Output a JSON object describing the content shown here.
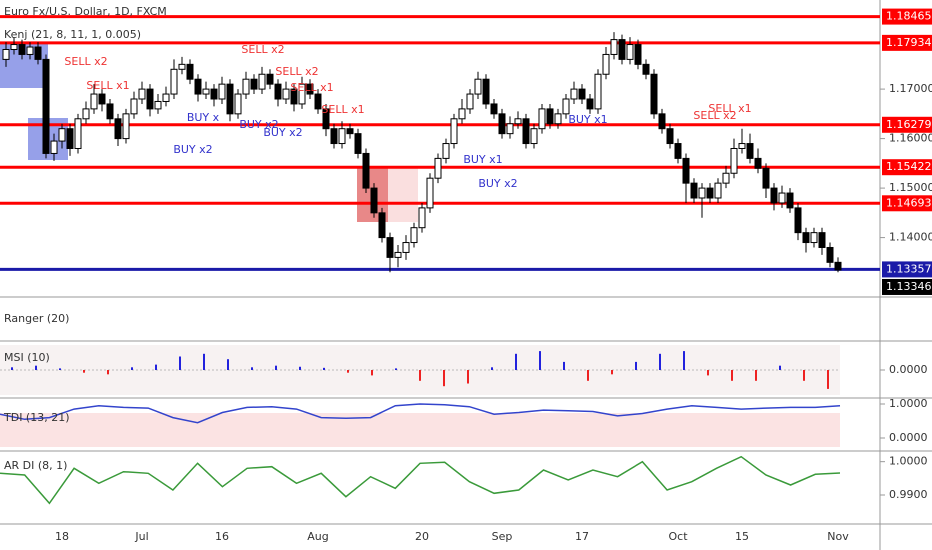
{
  "chart_data": [
    {
      "type": "candlestick",
      "title": "Euro Fx/U.S. Dollar, 1D, FXCM",
      "subtitle": "Kenj (21, 8, 11, 1, 0.005)",
      "up_color": "#ffffff",
      "down_color": "#000000",
      "categories": [
        null,
        null,
        null,
        null,
        null,
        null,
        null,
        "18",
        null,
        null,
        null,
        null,
        null,
        null,
        null,
        null,
        null,
        "Jul",
        null,
        null,
        null,
        null,
        null,
        null,
        null,
        null,
        null,
        "16",
        null,
        null,
        null,
        null,
        null,
        null,
        null,
        null,
        null,
        null,
        null,
        "Aug",
        null,
        null,
        null,
        null,
        null,
        null,
        null,
        null,
        null,
        null,
        null,
        null,
        "20",
        null,
        null,
        null,
        null,
        null,
        null,
        null,
        null,
        null,
        "Sep",
        null,
        null,
        null,
        null,
        null,
        null,
        null,
        null,
        null,
        "17",
        null,
        null,
        null,
        null,
        null,
        null,
        null,
        null,
        null,
        null,
        null,
        "Oct",
        null,
        null,
        null,
        null,
        null,
        null,
        null,
        "15",
        null,
        null,
        null,
        null,
        null,
        null,
        null,
        null,
        null,
        null,
        null,
        "Nov"
      ],
      "candles": [
        [
          1.176,
          1.1795,
          1.1745,
          1.178
        ],
        [
          1.178,
          1.1805,
          1.177,
          1.179
        ],
        [
          1.179,
          1.18,
          1.176,
          1.177
        ],
        [
          1.177,
          1.1795,
          1.176,
          1.1785
        ],
        [
          1.1785,
          1.1795,
          1.175,
          1.176
        ],
        [
          1.176,
          1.177,
          1.156,
          1.157
        ],
        [
          1.157,
          1.161,
          1.1555,
          1.1595
        ],
        [
          1.1595,
          1.163,
          1.158,
          1.162
        ],
        [
          1.162,
          1.163,
          1.1565,
          1.158
        ],
        [
          1.158,
          1.165,
          1.157,
          1.164
        ],
        [
          1.164,
          1.1675,
          1.163,
          1.166
        ],
        [
          1.166,
          1.171,
          1.165,
          1.169
        ],
        [
          1.169,
          1.17,
          1.1655,
          1.167
        ],
        [
          1.167,
          1.168,
          1.163,
          1.164
        ],
        [
          1.164,
          1.165,
          1.1585,
          1.16
        ],
        [
          1.16,
          1.166,
          1.159,
          1.165
        ],
        [
          1.165,
          1.1695,
          1.164,
          1.168
        ],
        [
          1.168,
          1.1715,
          1.167,
          1.17
        ],
        [
          1.17,
          1.171,
          1.1645,
          1.166
        ],
        [
          1.166,
          1.169,
          1.165,
          1.1675
        ],
        [
          1.1675,
          1.1705,
          1.1665,
          1.169
        ],
        [
          1.169,
          1.176,
          1.168,
          1.174
        ],
        [
          1.174,
          1.1765,
          1.173,
          1.175
        ],
        [
          1.175,
          1.176,
          1.171,
          1.172
        ],
        [
          1.172,
          1.173,
          1.1675,
          1.169
        ],
        [
          1.169,
          1.1715,
          1.168,
          1.17
        ],
        [
          1.17,
          1.171,
          1.1665,
          1.168
        ],
        [
          1.168,
          1.1725,
          1.167,
          1.171
        ],
        [
          1.171,
          1.172,
          1.1635,
          1.165
        ],
        [
          1.165,
          1.17,
          1.164,
          1.169
        ],
        [
          1.169,
          1.1735,
          1.168,
          1.172
        ],
        [
          1.172,
          1.173,
          1.169,
          1.17
        ],
        [
          1.17,
          1.1745,
          1.169,
          1.173
        ],
        [
          1.173,
          1.174,
          1.17,
          1.171
        ],
        [
          1.171,
          1.172,
          1.1665,
          1.168
        ],
        [
          1.168,
          1.1715,
          1.167,
          1.17
        ],
        [
          1.17,
          1.171,
          1.1655,
          1.167
        ],
        [
          1.167,
          1.1725,
          1.166,
          1.171
        ],
        [
          1.171,
          1.172,
          1.168,
          1.169
        ],
        [
          1.169,
          1.17,
          1.165,
          1.166
        ],
        [
          1.166,
          1.167,
          1.1605,
          1.162
        ],
        [
          1.162,
          1.163,
          1.158,
          1.159
        ],
        [
          1.159,
          1.1635,
          1.158,
          1.162
        ],
        [
          1.162,
          1.163,
          1.16,
          1.161
        ],
        [
          1.161,
          1.162,
          1.156,
          1.157
        ],
        [
          1.157,
          1.158,
          1.149,
          1.15
        ],
        [
          1.15,
          1.151,
          1.144,
          1.145
        ],
        [
          1.145,
          1.146,
          1.139,
          1.14
        ],
        [
          1.14,
          1.141,
          1.133,
          1.136
        ],
        [
          1.136,
          1.1385,
          1.134,
          1.137
        ],
        [
          1.137,
          1.1405,
          1.1355,
          1.139
        ],
        [
          1.139,
          1.143,
          1.138,
          1.142
        ],
        [
          1.142,
          1.147,
          1.141,
          1.146
        ],
        [
          1.146,
          1.153,
          1.145,
          1.152
        ],
        [
          1.152,
          1.157,
          1.151,
          1.156
        ],
        [
          1.156,
          1.16,
          1.155,
          1.159
        ],
        [
          1.159,
          1.165,
          1.158,
          1.164
        ],
        [
          1.164,
          1.168,
          1.163,
          1.166
        ],
        [
          1.166,
          1.17,
          1.165,
          1.169
        ],
        [
          1.169,
          1.1735,
          1.168,
          1.172
        ],
        [
          1.172,
          1.173,
          1.166,
          1.167
        ],
        [
          1.167,
          1.168,
          1.164,
          1.165
        ],
        [
          1.165,
          1.166,
          1.16,
          1.161
        ],
        [
          1.161,
          1.1645,
          1.16,
          1.163
        ],
        [
          1.163,
          1.1655,
          1.162,
          1.164
        ],
        [
          1.164,
          1.165,
          1.158,
          1.159
        ],
        [
          1.159,
          1.163,
          1.158,
          1.162
        ],
        [
          1.162,
          1.167,
          1.161,
          1.166
        ],
        [
          1.166,
          1.167,
          1.162,
          1.163
        ],
        [
          1.163,
          1.166,
          1.162,
          1.165
        ],
        [
          1.165,
          1.169,
          1.164,
          1.168
        ],
        [
          1.168,
          1.1715,
          1.167,
          1.17
        ],
        [
          1.17,
          1.171,
          1.167,
          1.168
        ],
        [
          1.168,
          1.169,
          1.165,
          1.166
        ],
        [
          1.166,
          1.174,
          1.165,
          1.173
        ],
        [
          1.173,
          1.1785,
          1.172,
          1.177
        ],
        [
          1.177,
          1.1815,
          1.176,
          1.18
        ],
        [
          1.18,
          1.181,
          1.175,
          1.176
        ],
        [
          1.176,
          1.1805,
          1.175,
          1.179
        ],
        [
          1.179,
          1.18,
          1.174,
          1.175
        ],
        [
          1.175,
          1.176,
          1.172,
          1.173
        ],
        [
          1.173,
          1.174,
          1.164,
          1.165
        ],
        [
          1.165,
          1.166,
          1.161,
          1.162
        ],
        [
          1.162,
          1.163,
          1.158,
          1.159
        ],
        [
          1.159,
          1.16,
          1.155,
          1.156
        ],
        [
          1.156,
          1.157,
          1.147,
          1.151
        ],
        [
          1.151,
          1.152,
          1.147,
          1.148
        ],
        [
          1.148,
          1.151,
          1.144,
          1.15
        ],
        [
          1.15,
          1.151,
          1.147,
          1.148
        ],
        [
          1.148,
          1.152,
          1.147,
          1.151
        ],
        [
          1.151,
          1.1545,
          1.15,
          1.153
        ],
        [
          1.153,
          1.16,
          1.152,
          1.158
        ],
        [
          1.158,
          1.162,
          1.157,
          1.159
        ],
        [
          1.159,
          1.161,
          1.155,
          1.156
        ],
        [
          1.156,
          1.158,
          1.153,
          1.154
        ],
        [
          1.154,
          1.155,
          1.148,
          1.15
        ],
        [
          1.15,
          1.151,
          1.1455,
          1.147
        ],
        [
          1.147,
          1.1505,
          1.146,
          1.149
        ],
        [
          1.149,
          1.15,
          1.145,
          1.146
        ],
        [
          1.146,
          1.147,
          1.1395,
          1.141
        ],
        [
          1.141,
          1.142,
          1.137,
          1.139
        ],
        [
          1.139,
          1.142,
          1.138,
          1.141
        ],
        [
          1.141,
          1.142,
          1.1365,
          1.138
        ],
        [
          1.138,
          1.139,
          1.134,
          1.135
        ],
        [
          1.135,
          1.136,
          1.133,
          1.13346
        ]
      ],
      "ylim": [
        1.1282,
        1.188
      ],
      "yticks": [
        {
          "value": 1.17,
          "label": "1.17000"
        },
        {
          "value": 1.16,
          "label": "1.16000"
        },
        {
          "value": 1.15,
          "label": "1.15000"
        },
        {
          "value": 1.14,
          "label": "1.14000"
        }
      ],
      "levels": [
        {
          "value": 1.18465,
          "label": "1.18465",
          "color": "#ff0000"
        },
        {
          "value": 1.17934,
          "label": "1.17934",
          "color": "#ff0000"
        },
        {
          "value": 1.16279,
          "label": "1.16279",
          "color": "#ff0000"
        },
        {
          "value": 1.15422,
          "label": "1.15422",
          "color": "#ff0000"
        },
        {
          "value": 1.14693,
          "label": "1.14693",
          "color": "#ff0000"
        },
        {
          "value": 1.13357,
          "label": "1.13357",
          "color": "#1a1aa8"
        }
      ],
      "last_price": {
        "value": 1.13346,
        "label": "1.13346",
        "color": "#000000"
      },
      "annotations": [
        "SELL x2",
        "SELL x1",
        "BUY x2",
        "BUY x",
        "SELL x2",
        "BUY x2",
        "BUY x2",
        "SELL x2",
        "SELL x1",
        "SELL x1",
        "BUY x1",
        "BUY x2",
        "BUY x1",
        "SELL x2",
        "SELL x1"
      ]
    },
    {
      "type": "panel",
      "title": "Ranger (20)"
    },
    {
      "type": "bar",
      "title": "MSI (10)",
      "values": [
        0.0005,
        0.0008,
        0.0003,
        -0.0005,
        -0.0008,
        0.0005,
        0.001,
        0.0025,
        0.003,
        0.002,
        0.0005,
        0.0008,
        0.0006,
        0.0004,
        -0.0005,
        -0.001,
        0.0003,
        -0.002,
        -0.003,
        -0.0025,
        0.0005,
        0.003,
        0.0035,
        0.0015,
        -0.002,
        -0.0008,
        0.0015,
        0.003,
        0.0035,
        -0.001,
        -0.002,
        -0.002,
        0.0008,
        -0.002,
        -0.0035
      ],
      "up_color": "#2222dd",
      "down_color": "#ee2222",
      "ylim": [
        -0.005,
        0.005
      ],
      "yticks": [
        {
          "value": 0,
          "label": "0.0000"
        }
      ]
    },
    {
      "type": "line",
      "title": "TDI (13, 21)",
      "color": "#3344cc",
      "values": [
        0.7,
        0.55,
        0.6,
        0.85,
        0.95,
        0.9,
        0.88,
        0.6,
        0.45,
        0.75,
        0.9,
        0.92,
        0.85,
        0.6,
        0.58,
        0.6,
        0.95,
        1.0,
        0.98,
        0.92,
        0.7,
        0.75,
        0.82,
        0.8,
        0.78,
        0.65,
        0.72,
        0.85,
        0.95,
        0.9,
        0.85,
        0.88,
        0.9,
        0.9,
        0.95
      ],
      "ylim": [
        -0.353,
        1.118
      ],
      "yticks": [
        {
          "value": 1,
          "label": "1.0000"
        },
        {
          "value": 0,
          "label": "0.0000"
        }
      ]
    },
    {
      "type": "line",
      "title": "AR DI (8, 1)",
      "color": "#3a9a3a",
      "values": [
        0.9965,
        0.996,
        0.9875,
        0.998,
        0.9935,
        0.997,
        0.9965,
        0.9915,
        0.9995,
        0.9925,
        0.998,
        0.9985,
        0.9935,
        0.9965,
        0.9895,
        0.9955,
        0.992,
        0.9995,
        0.9998,
        0.994,
        0.9905,
        0.9915,
        0.9975,
        0.9945,
        0.9975,
        0.9955,
        1.0,
        0.9915,
        0.994,
        0.998,
        1.0015,
        0.996,
        0.993,
        0.9962,
        0.9966
      ],
      "ylim": [
        0.9816,
        1.0026
      ],
      "yticks": [
        {
          "value": 1,
          "label": "1.0000"
        },
        {
          "value": 0.99,
          "label": "0.9900"
        }
      ]
    }
  ]
}
